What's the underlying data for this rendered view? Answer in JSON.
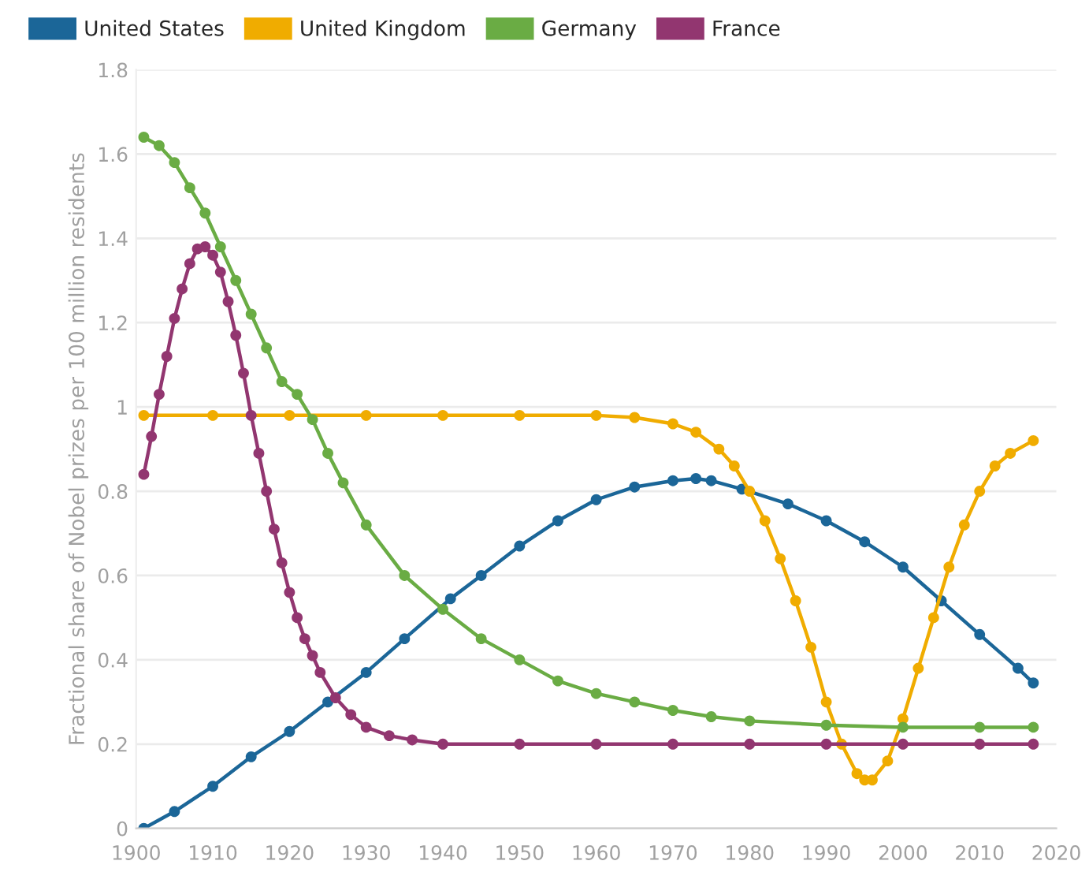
{
  "chart_data": {
    "type": "line",
    "ylabel": "Fractional share of Nobel prizes per 100 million residents",
    "xlim": [
      1900,
      2020
    ],
    "xticks": [
      1900,
      1910,
      1920,
      1930,
      1940,
      1950,
      1960,
      1970,
      1980,
      1990,
      2000,
      2010,
      2020
    ],
    "ylim": [
      0,
      1.8
    ],
    "yticks": [
      0,
      0.2,
      0.4,
      0.6,
      0.8,
      1,
      1.2,
      1.4,
      1.6,
      1.8
    ],
    "grid": "y",
    "legend": "top left",
    "marker": "circle",
    "line_style": "solid",
    "series": [
      {
        "name": "United States",
        "color": "#1b6698",
        "x": [
          1901,
          1905,
          1910,
          1915,
          1920,
          1925,
          1930,
          1935,
          1941,
          1945,
          1950,
          1955,
          1960,
          1965,
          1970,
          1973,
          1975,
          1979,
          1985,
          1990,
          1995,
          2000,
          2005,
          2010,
          2015,
          2017
        ],
        "values": [
          0.0,
          0.04,
          0.1,
          0.17,
          0.23,
          0.3,
          0.37,
          0.45,
          0.545,
          0.6,
          0.67,
          0.73,
          0.78,
          0.81,
          0.825,
          0.83,
          0.825,
          0.805,
          0.77,
          0.73,
          0.68,
          0.62,
          0.54,
          0.46,
          0.38,
          0.345
        ]
      },
      {
        "name": "United Kingdom",
        "color": "#f0ac00",
        "x": [
          1901,
          1910,
          1920,
          1930,
          1940,
          1950,
          1960,
          1965,
          1970,
          1973,
          1976,
          1978,
          1980,
          1982,
          1984,
          1986,
          1988,
          1990,
          1992,
          1994,
          1995,
          1996,
          1998,
          2000,
          2002,
          2004,
          2006,
          2008,
          2010,
          2012,
          2014,
          2017
        ],
        "values": [
          0.98,
          0.98,
          0.98,
          0.98,
          0.98,
          0.98,
          0.98,
          0.975,
          0.96,
          0.94,
          0.9,
          0.86,
          0.8,
          0.73,
          0.64,
          0.54,
          0.43,
          0.3,
          0.2,
          0.13,
          0.115,
          0.115,
          0.16,
          0.26,
          0.38,
          0.5,
          0.62,
          0.72,
          0.8,
          0.86,
          0.89,
          0.92
        ]
      },
      {
        "name": "Germany",
        "color": "#6aac44",
        "x": [
          1901,
          1903,
          1905,
          1907,
          1909,
          1911,
          1913,
          1915,
          1917,
          1919,
          1921,
          1923,
          1925,
          1927,
          1930,
          1935,
          1940,
          1945,
          1950,
          1955,
          1960,
          1965,
          1970,
          1975,
          1980,
          1990,
          2000,
          2010,
          2017
        ],
        "values": [
          1.64,
          1.62,
          1.58,
          1.52,
          1.46,
          1.38,
          1.3,
          1.22,
          1.14,
          1.06,
          1.03,
          0.97,
          0.89,
          0.82,
          0.72,
          0.6,
          0.52,
          0.45,
          0.4,
          0.35,
          0.32,
          0.3,
          0.28,
          0.265,
          0.255,
          0.245,
          0.24,
          0.24,
          0.24
        ]
      },
      {
        "name": "France",
        "color": "#923670",
        "x": [
          1901,
          1902,
          1903,
          1904,
          1905,
          1906,
          1907,
          1908,
          1909,
          1910,
          1911,
          1912,
          1913,
          1914,
          1915,
          1916,
          1917,
          1918,
          1919,
          1920,
          1921,
          1922,
          1923,
          1924,
          1926,
          1928,
          1930,
          1933,
          1936,
          1940,
          1950,
          1960,
          1970,
          1980,
          1990,
          2000,
          2010,
          2017
        ],
        "values": [
          0.84,
          0.93,
          1.03,
          1.12,
          1.21,
          1.28,
          1.34,
          1.375,
          1.38,
          1.36,
          1.32,
          1.25,
          1.17,
          1.08,
          0.98,
          0.89,
          0.8,
          0.71,
          0.63,
          0.56,
          0.5,
          0.45,
          0.41,
          0.37,
          0.31,
          0.27,
          0.24,
          0.22,
          0.21,
          0.2,
          0.2,
          0.2,
          0.2,
          0.2,
          0.2,
          0.2,
          0.2,
          0.2
        ]
      }
    ]
  }
}
